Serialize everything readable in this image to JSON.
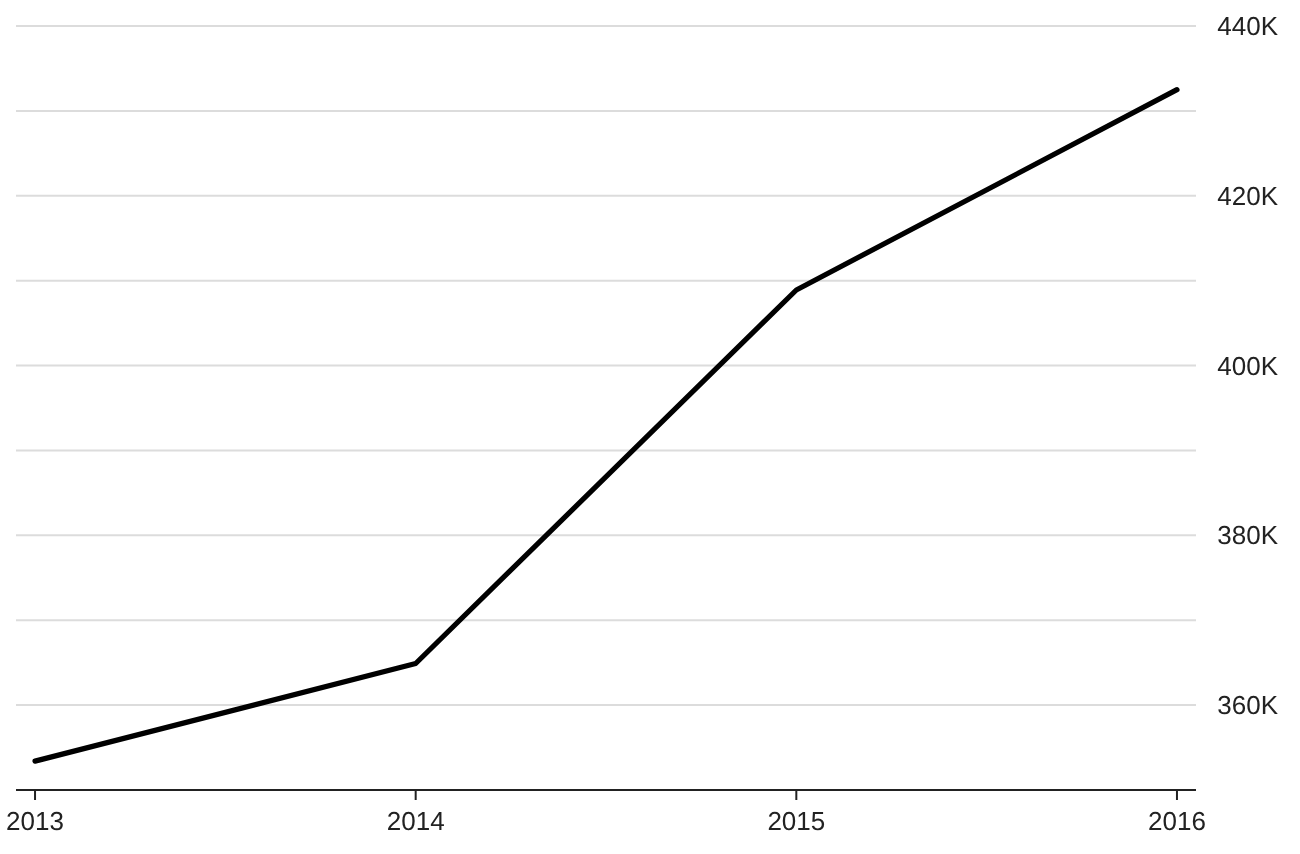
{
  "chart_data": {
    "type": "line",
    "x": [
      2013,
      2014,
      2015,
      2016
    ],
    "xlim": [
      2012.95,
      2016.05
    ],
    "xticks": [
      {
        "value": 2013,
        "label": "2013"
      },
      {
        "value": 2014,
        "label": "2014"
      },
      {
        "value": 2015,
        "label": "2015"
      },
      {
        "value": 2016,
        "label": "2016"
      }
    ],
    "ylim": [
      350000,
      440000
    ],
    "yticks": [
      {
        "value": 350000,
        "label": null
      },
      {
        "value": 360000,
        "label": "360K"
      },
      {
        "value": 370000,
        "label": null
      },
      {
        "value": 380000,
        "label": "380K"
      },
      {
        "value": 390000,
        "label": null
      },
      {
        "value": 400000,
        "label": "400K"
      },
      {
        "value": 410000,
        "label": null
      },
      {
        "value": 420000,
        "label": "420K"
      },
      {
        "value": 430000,
        "label": null
      },
      {
        "value": 440000,
        "label": "440K"
      }
    ],
    "grid": "y",
    "marker": "none",
    "line_style": "solid",
    "series": [
      {
        "color": "#000000",
        "values": [
          353400,
          364900,
          408900,
          432500
        ]
      }
    ]
  }
}
